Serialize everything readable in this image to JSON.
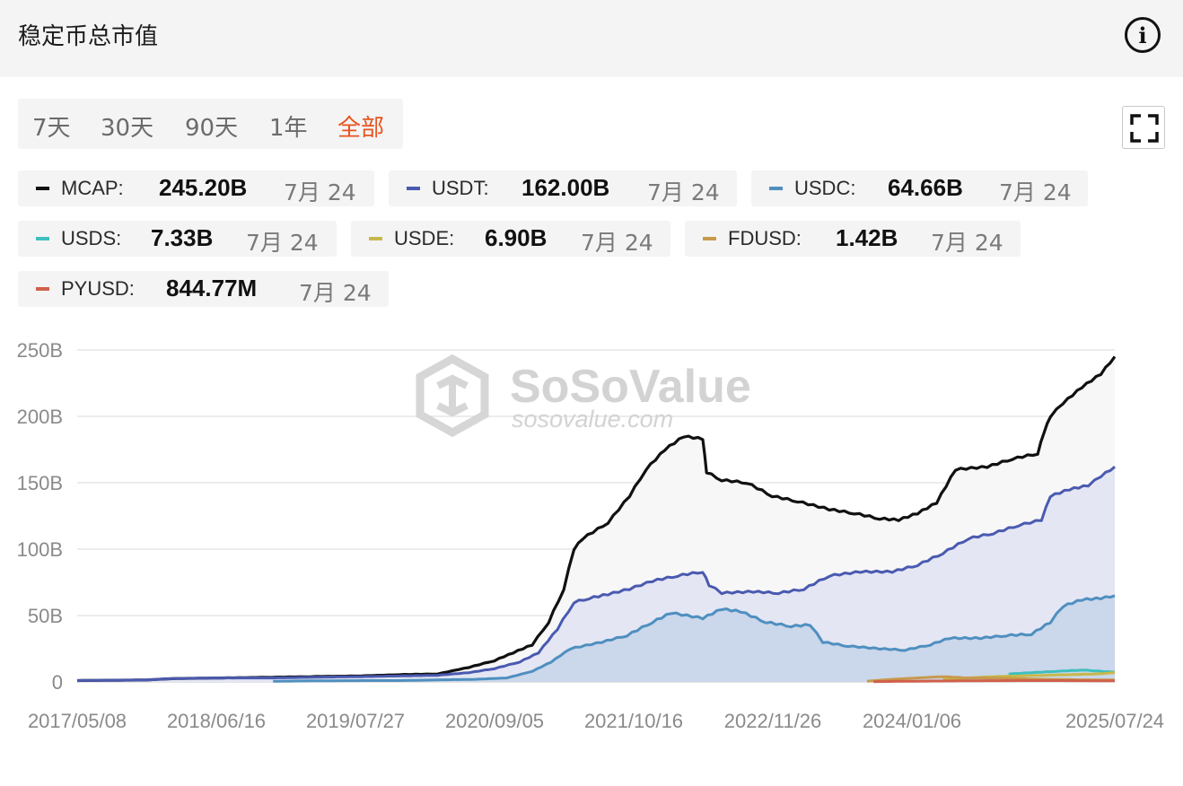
{
  "header": {
    "title": "稳定币总市值"
  },
  "range_tabs": [
    {
      "label": "7天",
      "active": false
    },
    {
      "label": "30天",
      "active": false
    },
    {
      "label": "90天",
      "active": false
    },
    {
      "label": "1年",
      "active": false
    },
    {
      "label": "全部",
      "active": true
    }
  ],
  "legend": [
    {
      "name": "MCAP:",
      "value": "245.20B",
      "date": "7月 24",
      "color": "#111111"
    },
    {
      "name": "USDT:",
      "value": "162.00B",
      "date": "7月 24",
      "color": "#4a5ab0"
    },
    {
      "name": "USDC:",
      "value": "64.66B",
      "date": "7月 24",
      "color": "#4f8fc0"
    },
    {
      "name": "USDS:",
      "value": "7.33B",
      "date": "7月 24",
      "color": "#3dbfbf"
    },
    {
      "name": "USDE:",
      "value": "6.90B",
      "date": "7月 24",
      "color": "#c8b84a"
    },
    {
      "name": "FDUSD:",
      "value": "1.42B",
      "date": "7月 24",
      "color": "#c79a4c"
    },
    {
      "name": "PYUSD:",
      "value": "844.77M",
      "date": "7月 24",
      "color": "#d0604a"
    }
  ],
  "watermark": {
    "brand": "SoSoValue",
    "url": "sosovalue.com"
  },
  "chart_data": {
    "type": "area",
    "x_labels": [
      "2017/05/08",
      "2018/06/16",
      "2019/07/27",
      "2020/09/05",
      "2021/10/16",
      "2022/11/26",
      "2024/01/06",
      "2025/07/24"
    ],
    "y_ticks": [
      "0",
      "50B",
      "100B",
      "150B",
      "200B",
      "250B"
    ],
    "ylim": [
      0,
      250
    ],
    "xlim": [
      2017.35,
      2025.56
    ],
    "grid": true,
    "series": [
      {
        "name": "MCAP",
        "color": "#111111",
        "fill": "#f7f7f7",
        "points": [
          [
            2017.35,
            1
          ],
          [
            2017.9,
            1.5
          ],
          [
            2018.1,
            2.5
          ],
          [
            2018.5,
            3
          ],
          [
            2018.9,
            3.5
          ],
          [
            2019.2,
            4
          ],
          [
            2019.6,
            4.5
          ],
          [
            2019.9,
            5.5
          ],
          [
            2020.2,
            6
          ],
          [
            2020.45,
            11
          ],
          [
            2020.65,
            16
          ],
          [
            2020.8,
            22
          ],
          [
            2020.95,
            28
          ],
          [
            2021.08,
            45
          ],
          [
            2021.2,
            70
          ],
          [
            2021.28,
            100
          ],
          [
            2021.35,
            108
          ],
          [
            2021.55,
            120
          ],
          [
            2021.72,
            140
          ],
          [
            2021.85,
            160
          ],
          [
            2022.0,
            175
          ],
          [
            2022.15,
            185
          ],
          [
            2022.3,
            183
          ],
          [
            2022.33,
            158
          ],
          [
            2022.45,
            152
          ],
          [
            2022.65,
            150
          ],
          [
            2022.85,
            140
          ],
          [
            2023.05,
            136
          ],
          [
            2023.3,
            130
          ],
          [
            2023.5,
            127
          ],
          [
            2023.7,
            123
          ],
          [
            2023.85,
            122
          ],
          [
            2024.0,
            127
          ],
          [
            2024.15,
            135
          ],
          [
            2024.3,
            160
          ],
          [
            2024.55,
            162
          ],
          [
            2024.75,
            168
          ],
          [
            2024.95,
            172
          ],
          [
            2025.0,
            188
          ],
          [
            2025.05,
            200
          ],
          [
            2025.15,
            210
          ],
          [
            2025.3,
            222
          ],
          [
            2025.45,
            232
          ],
          [
            2025.56,
            245
          ]
        ]
      },
      {
        "name": "USDT",
        "color": "#4a5ab0",
        "fill": "#e4e6f3",
        "points": [
          [
            2017.35,
            1
          ],
          [
            2017.9,
            1.5
          ],
          [
            2018.1,
            2.5
          ],
          [
            2018.5,
            3
          ],
          [
            2018.9,
            3
          ],
          [
            2019.2,
            3.5
          ],
          [
            2019.6,
            4
          ],
          [
            2019.9,
            4.5
          ],
          [
            2020.2,
            5
          ],
          [
            2020.45,
            7
          ],
          [
            2020.65,
            10
          ],
          [
            2020.85,
            15
          ],
          [
            2021.0,
            22
          ],
          [
            2021.15,
            40
          ],
          [
            2021.28,
            60
          ],
          [
            2021.4,
            63
          ],
          [
            2021.55,
            66
          ],
          [
            2021.72,
            70
          ],
          [
            2021.9,
            76
          ],
          [
            2022.1,
            80
          ],
          [
            2022.3,
            83
          ],
          [
            2022.35,
            73
          ],
          [
            2022.45,
            67
          ],
          [
            2022.7,
            68
          ],
          [
            2022.9,
            67
          ],
          [
            2023.1,
            70
          ],
          [
            2023.3,
            80
          ],
          [
            2023.55,
            83
          ],
          [
            2023.8,
            83
          ],
          [
            2024.0,
            88
          ],
          [
            2024.2,
            97
          ],
          [
            2024.4,
            108
          ],
          [
            2024.6,
            112
          ],
          [
            2024.8,
            118
          ],
          [
            2024.98,
            122
          ],
          [
            2025.05,
            140
          ],
          [
            2025.2,
            145
          ],
          [
            2025.35,
            148
          ],
          [
            2025.45,
            155
          ],
          [
            2025.56,
            162
          ]
        ]
      },
      {
        "name": "USDC",
        "color": "#4f8fc0",
        "fill": "#cbd7ea",
        "points": [
          [
            2018.9,
            0.5
          ],
          [
            2019.2,
            0.8
          ],
          [
            2019.6,
            1
          ],
          [
            2019.9,
            1
          ],
          [
            2020.2,
            1.5
          ],
          [
            2020.5,
            2
          ],
          [
            2020.75,
            3
          ],
          [
            2020.95,
            8
          ],
          [
            2021.1,
            15
          ],
          [
            2021.25,
            25
          ],
          [
            2021.5,
            30
          ],
          [
            2021.7,
            35
          ],
          [
            2021.9,
            45
          ],
          [
            2022.05,
            52
          ],
          [
            2022.3,
            48
          ],
          [
            2022.45,
            55
          ],
          [
            2022.6,
            53
          ],
          [
            2022.8,
            45
          ],
          [
            2023.0,
            42
          ],
          [
            2023.15,
            43
          ],
          [
            2023.25,
            30
          ],
          [
            2023.45,
            27
          ],
          [
            2023.7,
            25
          ],
          [
            2023.9,
            24
          ],
          [
            2024.1,
            28
          ],
          [
            2024.25,
            33
          ],
          [
            2024.5,
            33
          ],
          [
            2024.7,
            35
          ],
          [
            2024.9,
            36
          ],
          [
            2025.05,
            45
          ],
          [
            2025.15,
            57
          ],
          [
            2025.3,
            62
          ],
          [
            2025.45,
            63
          ],
          [
            2025.56,
            65
          ]
        ]
      },
      {
        "name": "USDS",
        "color": "#3dbfbf",
        "fill": "none",
        "points": [
          [
            2024.72,
            6
          ],
          [
            2024.9,
            7
          ],
          [
            2025.1,
            8
          ],
          [
            2025.3,
            9
          ],
          [
            2025.56,
            7.3
          ]
        ]
      },
      {
        "name": "USDE",
        "color": "#c8b84a",
        "fill": "none",
        "points": [
          [
            2024.2,
            2
          ],
          [
            2024.4,
            3
          ],
          [
            2024.6,
            4
          ],
          [
            2024.8,
            4.5
          ],
          [
            2025.0,
            5
          ],
          [
            2025.2,
            5.5
          ],
          [
            2025.4,
            6
          ],
          [
            2025.56,
            6.9
          ]
        ]
      },
      {
        "name": "FDUSD",
        "color": "#c79a4c",
        "fill": "none",
        "points": [
          [
            2023.6,
            0.5
          ],
          [
            2023.8,
            2
          ],
          [
            2024.0,
            3
          ],
          [
            2024.2,
            4
          ],
          [
            2024.4,
            3
          ],
          [
            2024.6,
            3
          ],
          [
            2024.8,
            2.5
          ],
          [
            2025.0,
            2
          ],
          [
            2025.3,
            1.6
          ],
          [
            2025.56,
            1.42
          ]
        ]
      },
      {
        "name": "PYUSD",
        "color": "#d0604a",
        "fill": "none",
        "points": [
          [
            2023.65,
            0.2
          ],
          [
            2023.9,
            0.5
          ],
          [
            2024.2,
            0.7
          ],
          [
            2024.5,
            0.9
          ],
          [
            2024.8,
            1
          ],
          [
            2025.1,
            1
          ],
          [
            2025.4,
            0.9
          ],
          [
            2025.56,
            0.84
          ]
        ]
      }
    ]
  }
}
